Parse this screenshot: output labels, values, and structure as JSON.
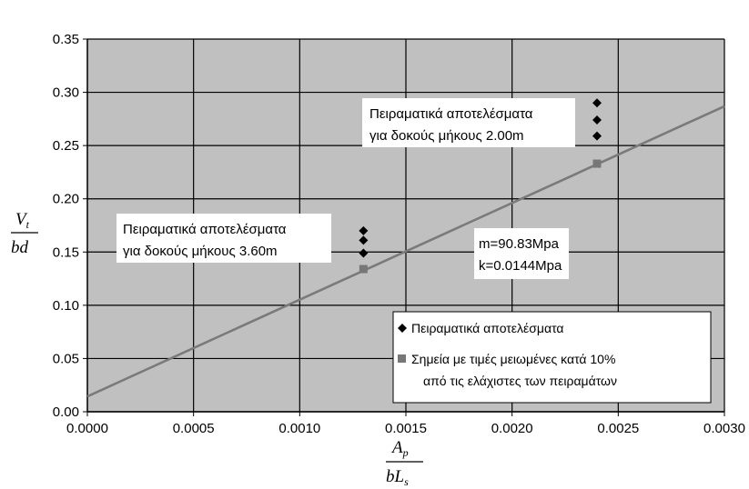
{
  "chart_data": {
    "type": "scatter",
    "xlim": [
      0,
      0.003
    ],
    "ylim": [
      0,
      0.35
    ],
    "x_ticks": [
      "0.0000",
      "0.0005",
      "0.0010",
      "0.0015",
      "0.0020",
      "0.0025",
      "0.0030"
    ],
    "y_ticks": [
      "0.00",
      "0.05",
      "0.10",
      "0.15",
      "0.20",
      "0.25",
      "0.30",
      "0.35"
    ],
    "xlabel": {
      "numerator": "A",
      "numerator_sub": "p",
      "denominator": "bL",
      "denominator_sub": "s"
    },
    "ylabel": {
      "numerator": "V",
      "numerator_sub": "t",
      "denominator": "bd"
    },
    "grid": true,
    "plot_background": "#c0c0c0",
    "series": [
      {
        "name": "Πειραματικά αποτελέσματα",
        "marker": "diamond",
        "color": "#000000",
        "points": [
          {
            "x": 0.0013,
            "y": 0.149
          },
          {
            "x": 0.0013,
            "y": 0.161
          },
          {
            "x": 0.0013,
            "y": 0.17
          },
          {
            "x": 0.0024,
            "y": 0.259
          },
          {
            "x": 0.0024,
            "y": 0.274
          },
          {
            "x": 0.0024,
            "y": 0.29
          }
        ]
      },
      {
        "name": "Σημεία με τιμές μειωμένες κατά 10% από τις ελάχιστες των πειραμάτων",
        "marker": "square",
        "color": "#777777",
        "points": [
          {
            "x": 0.0013,
            "y": 0.134
          },
          {
            "x": 0.0024,
            "y": 0.233
          }
        ]
      }
    ],
    "fit_line": {
      "color": "#7a7a7a",
      "x": [
        0,
        0.003
      ],
      "y": [
        0.0144,
        0.28689
      ]
    },
    "annotations": [
      {
        "lines": [
          "Πειραματικά αποτελέσματα",
          "για δοκούς μήκους 2.00m"
        ],
        "at": "upper-right-cluster"
      },
      {
        "lines": [
          "Πειραματικά αποτελέσματα",
          "για δοκούς μήκους 3.60m"
        ],
        "at": "middle-left-cluster"
      },
      {
        "lines": [
          "m=90.83Mpa",
          "k=0.0144Mpa"
        ],
        "at": "center"
      }
    ],
    "legend": {
      "position": "bottom-right",
      "entries": [
        {
          "marker": "diamond",
          "lines": [
            "Πειραματικά αποτελέσματα"
          ]
        },
        {
          "marker": "square",
          "lines": [
            "Σημεία με τιμές μειωμένες κατά 10%",
            "από τις ελάχιστες των πειραμάτων"
          ]
        }
      ]
    }
  }
}
